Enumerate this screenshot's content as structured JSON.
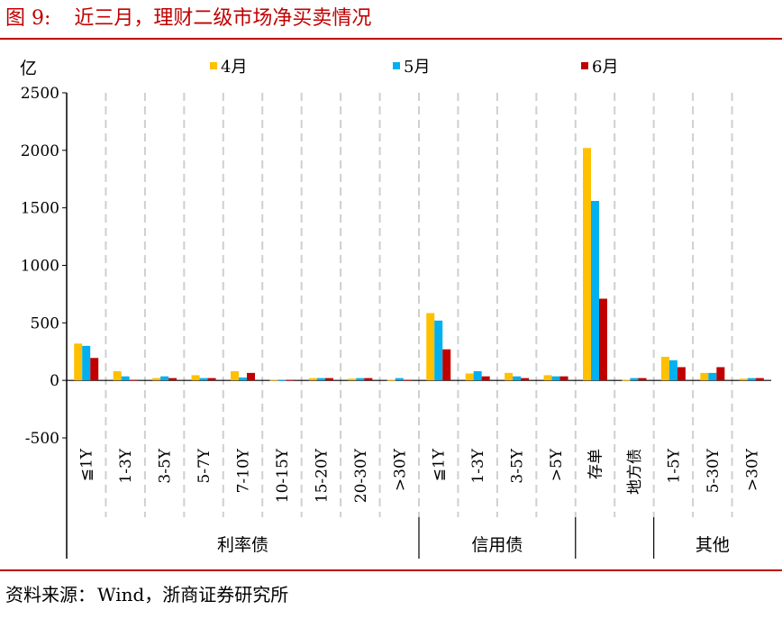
{
  "figure": {
    "label": "图 9:",
    "title": "近三月，理财二级市场净买卖情况",
    "source_label": "资料来源：",
    "source_text": "Wind，浙商证券研究所"
  },
  "colors": {
    "accent": "#c00000",
    "series": [
      "#ffc000",
      "#00b0f0",
      "#c00000"
    ]
  },
  "chart_data": {
    "type": "bar",
    "title": "",
    "unit_label": "亿",
    "legend_position": "top",
    "ylim": [
      -500,
      2500
    ],
    "yticks": [
      -500,
      0,
      500,
      1000,
      1500,
      2000,
      2500
    ],
    "grid": false,
    "categories": [
      "≦1Y",
      "1-3Y",
      "3-5Y",
      "5-7Y",
      "7-10Y",
      "10-15Y",
      "15-20Y",
      "20-30Y",
      ">30Y",
      "≦1Y",
      "1-3Y",
      "3-5Y",
      ">5Y",
      "存单",
      "地方债",
      "1-5Y",
      "5-30Y",
      ">30Y"
    ],
    "groups": [
      {
        "name": "利率债",
        "count": 9
      },
      {
        "name": "信用债",
        "count": 4
      },
      {
        "name": "",
        "count": 2
      },
      {
        "name": "其他",
        "count": 3
      }
    ],
    "series": [
      {
        "name": "4月",
        "values": [
          320,
          80,
          20,
          45,
          80,
          5,
          20,
          15,
          5,
          585,
          60,
          65,
          45,
          2020,
          5,
          205,
          65,
          15
        ]
      },
      {
        "name": "5月",
        "values": [
          300,
          35,
          35,
          20,
          25,
          5,
          20,
          20,
          20,
          520,
          80,
          35,
          35,
          1560,
          20,
          175,
          65,
          20
        ]
      },
      {
        "name": "6月",
        "values": [
          195,
          5,
          20,
          20,
          65,
          5,
          20,
          20,
          5,
          270,
          35,
          20,
          35,
          710,
          20,
          115,
          115,
          20
        ]
      }
    ]
  }
}
